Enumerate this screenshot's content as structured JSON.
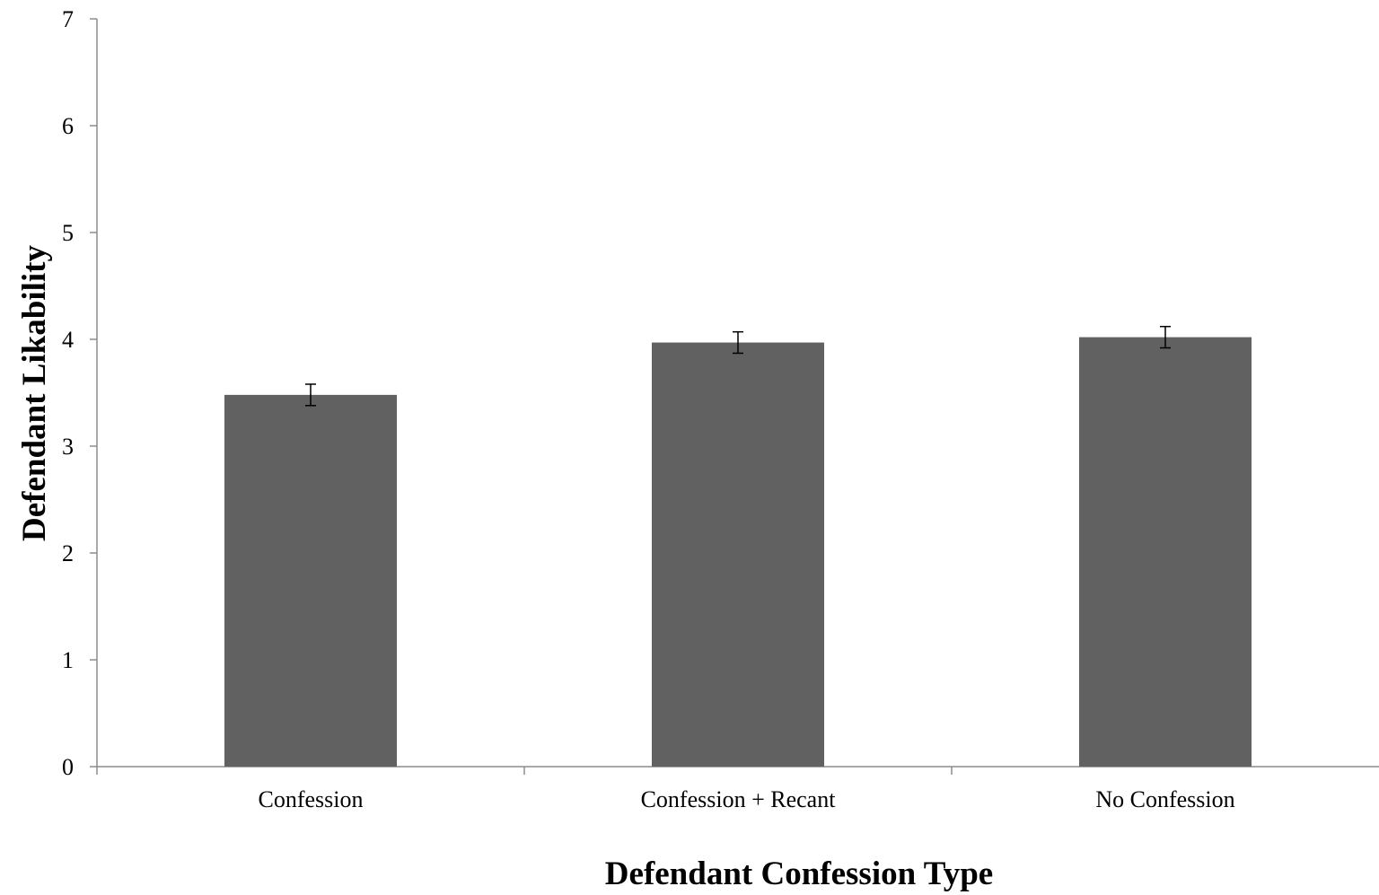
{
  "chart_data": {
    "type": "bar",
    "title": "",
    "xlabel": "Defendant Confession Type",
    "ylabel": "Defendant Likability",
    "categories": [
      "Confession",
      "Confession + Recant",
      "No Confession"
    ],
    "values": [
      3.48,
      3.97,
      4.02
    ],
    "error": [
      0.1,
      0.1,
      0.1
    ],
    "ylim": [
      0,
      7
    ],
    "yticks": [
      0,
      1,
      2,
      3,
      4,
      5,
      6,
      7
    ],
    "grid": false,
    "legend": "none",
    "bar_color": "#616161"
  }
}
